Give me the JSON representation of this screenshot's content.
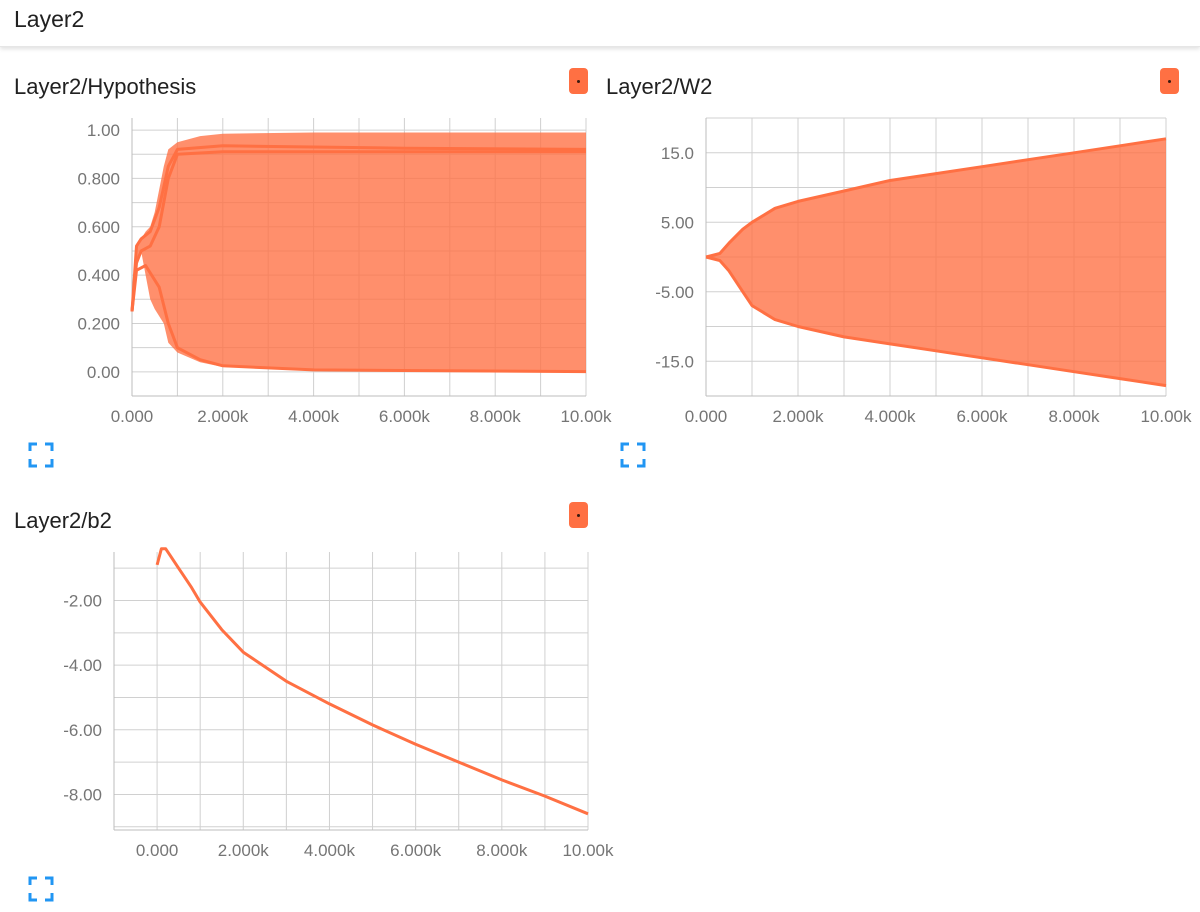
{
  "header": {
    "title": "Layer2"
  },
  "colors": {
    "series": "#ff7043",
    "grid": "#d0d0d0",
    "tick_text": "#757575",
    "icon": "#2196f3"
  },
  "icons": {
    "menu": "menu-dot-icon",
    "expand": "expand-icon"
  },
  "cards": [
    {
      "title": "Layer2/Hypothesis"
    },
    {
      "title": "Layer2/W2"
    },
    {
      "title": "Layer2/b2"
    }
  ],
  "chart_data": [
    {
      "type": "area",
      "title": "Layer2/Hypothesis",
      "xlim": [
        0,
        10000
      ],
      "ylim": [
        -0.1,
        1.05
      ],
      "x_ticks": [
        0,
        2000,
        4000,
        6000,
        8000,
        10000
      ],
      "x_tick_labels": [
        "0.000",
        "2.000k",
        "4.000k",
        "6.000k",
        "8.000k",
        "10.00k"
      ],
      "y_ticks": [
        0,
        0.2,
        0.4,
        0.6,
        0.8,
        1.0
      ],
      "y_tick_labels": [
        "0.00",
        "0.200",
        "0.400",
        "0.600",
        "0.800",
        "1.00"
      ],
      "grid": true,
      "bands": [
        {
          "x": [
            0,
            100,
            200,
            300,
            400,
            500,
            700,
            800,
            1000,
            1500,
            2000,
            4000,
            7000,
            10000
          ],
          "upper": [
            0.25,
            0.52,
            0.55,
            0.58,
            0.6,
            0.66,
            0.85,
            0.92,
            0.95,
            0.975,
            0.985,
            0.99,
            0.99,
            0.99
          ],
          "lower": [
            0.25,
            0.44,
            0.5,
            0.4,
            0.3,
            0.26,
            0.2,
            0.12,
            0.08,
            0.04,
            0.02,
            0.008,
            0.003,
            0.001
          ]
        }
      ],
      "lines": [
        {
          "x": [
            0,
            100,
            200,
            400,
            600,
            800,
            1000,
            2000,
            6000,
            10000
          ],
          "y": [
            0.25,
            0.52,
            0.55,
            0.58,
            0.68,
            0.85,
            0.92,
            0.935,
            0.925,
            0.92
          ]
        },
        {
          "x": [
            0,
            100,
            200,
            400,
            600,
            800,
            1000,
            2000,
            10000
          ],
          "y": [
            0.25,
            0.45,
            0.5,
            0.52,
            0.6,
            0.8,
            0.9,
            0.91,
            0.91
          ]
        },
        {
          "x": [
            0,
            100,
            300,
            600,
            800,
            1000,
            1500,
            2000,
            4000,
            10000
          ],
          "y": [
            0.25,
            0.42,
            0.44,
            0.35,
            0.2,
            0.1,
            0.05,
            0.025,
            0.008,
            0.001
          ]
        }
      ]
    },
    {
      "type": "area",
      "title": "Layer2/W2",
      "xlim": [
        0,
        10000
      ],
      "ylim": [
        -20,
        20
      ],
      "x_ticks": [
        0,
        2000,
        4000,
        6000,
        8000,
        10000
      ],
      "x_tick_labels": [
        "0.000",
        "2.000k",
        "4.000k",
        "6.000k",
        "8.000k",
        "10.00k"
      ],
      "y_ticks": [
        15,
        5,
        -5,
        -15
      ],
      "y_tick_labels": [
        "15.0",
        "5.00",
        "-5.00",
        "-15.0"
      ],
      "grid": true,
      "bands": [
        {
          "x": [
            0,
            300,
            500,
            800,
            1000,
            1500,
            2000,
            3000,
            4000,
            5000,
            6000,
            7000,
            8000,
            9000,
            10000
          ],
          "upper": [
            0,
            0.5,
            2,
            4,
            5,
            7,
            8,
            9.5,
            11,
            12,
            13,
            14,
            15,
            16,
            17
          ],
          "lower": [
            0,
            -0.5,
            -2,
            -5,
            -7,
            -9,
            -10,
            -11.5,
            -12.5,
            -13.5,
            -14.5,
            -15.5,
            -16.5,
            -17.5,
            -18.5
          ]
        }
      ],
      "lines": [
        {
          "x": [
            0,
            300,
            500,
            800,
            1000,
            1500,
            2000,
            3000,
            4000,
            5000,
            6000,
            7000,
            8000,
            9000,
            10000
          ],
          "y": [
            0,
            0.5,
            2,
            4,
            5,
            7,
            8,
            9.5,
            11,
            12,
            13,
            14,
            15,
            16,
            17
          ]
        },
        {
          "x": [
            0,
            300,
            500,
            800,
            1000,
            1500,
            2000,
            3000,
            4000,
            5000,
            6000,
            7000,
            8000,
            9000,
            10000
          ],
          "y": [
            0,
            -0.5,
            -2,
            -5,
            -7,
            -9,
            -10,
            -11.5,
            -12.5,
            -13.5,
            -14.5,
            -15.5,
            -16.5,
            -17.5,
            -18.5
          ]
        }
      ]
    },
    {
      "type": "line",
      "title": "Layer2/b2",
      "xlim": [
        -1000,
        10000
      ],
      "ylim": [
        -9.1,
        -0.5
      ],
      "x_ticks": [
        0,
        2000,
        4000,
        6000,
        8000,
        10000
      ],
      "x_tick_labels": [
        "0.000",
        "2.000k",
        "4.000k",
        "6.000k",
        "8.000k",
        "10.00k"
      ],
      "y_ticks": [
        -2,
        -4,
        -6,
        -8
      ],
      "y_tick_labels": [
        "-2.00",
        "-4.00",
        "-6.00",
        "-8.00"
      ],
      "grid": true,
      "bands": [],
      "lines": [
        {
          "x": [
            0,
            100,
            200,
            300,
            400,
            500,
            600,
            800,
            1000,
            1500,
            2000,
            3000,
            4000,
            5000,
            6000,
            7000,
            8000,
            9000,
            10000
          ],
          "y": [
            -0.9,
            -0.4,
            -0.4,
            -0.6,
            -0.8,
            -1.0,
            -1.2,
            -1.6,
            -2.05,
            -2.9,
            -3.6,
            -4.5,
            -5.2,
            -5.85,
            -6.45,
            -7.0,
            -7.55,
            -8.05,
            -8.6
          ]
        }
      ]
    }
  ]
}
